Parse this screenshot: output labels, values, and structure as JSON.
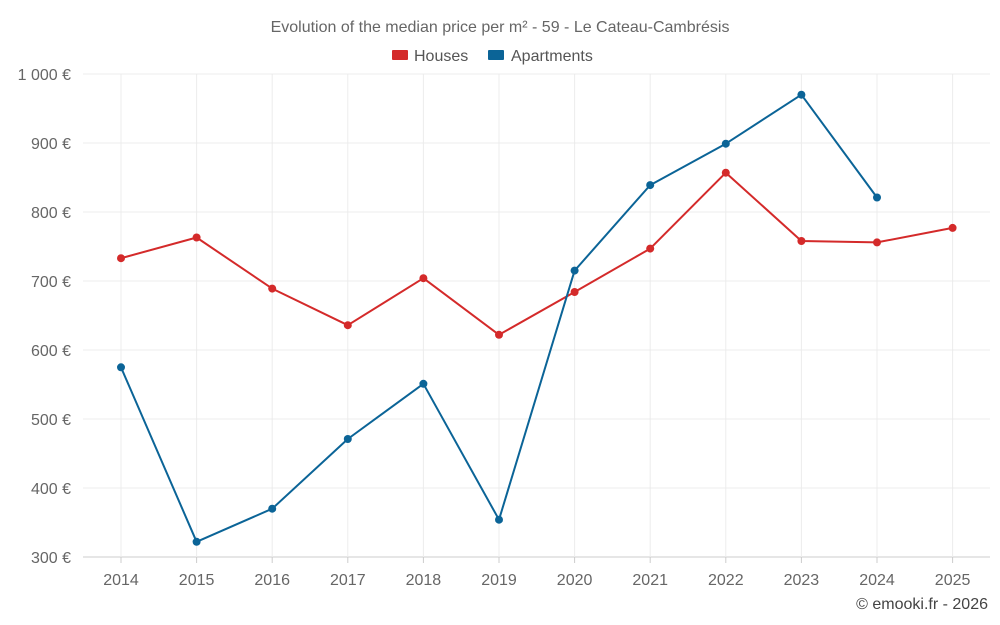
{
  "chart_data": {
    "type": "line",
    "title": "Evolution of the median price per m² - 59 - Le Cateau-Cambrésis",
    "categories": [
      "2014",
      "2015",
      "2016",
      "2017",
      "2018",
      "2019",
      "2020",
      "2021",
      "2022",
      "2023",
      "2024",
      "2025"
    ],
    "ylim": [
      300,
      1000
    ],
    "yticks": [
      300,
      400,
      500,
      600,
      700,
      800,
      900,
      1000
    ],
    "ytick_labels": [
      "300 €",
      "400 €",
      "500 €",
      "600 €",
      "700 €",
      "800 €",
      "900 €",
      "1 000 €"
    ],
    "legend_position": "top-center",
    "grid": true,
    "series": [
      {
        "name": "Houses",
        "color": "#d42a2a",
        "values": [
          733,
          763,
          689,
          636,
          704,
          622,
          684,
          747,
          857,
          758,
          756,
          777
        ]
      },
      {
        "name": "Apartments",
        "color": "#0b6497",
        "values": [
          575,
          322,
          370,
          471,
          551,
          354,
          715,
          839,
          899,
          970,
          821,
          null
        ]
      }
    ]
  },
  "credit": "© emooki.fr - 2026"
}
